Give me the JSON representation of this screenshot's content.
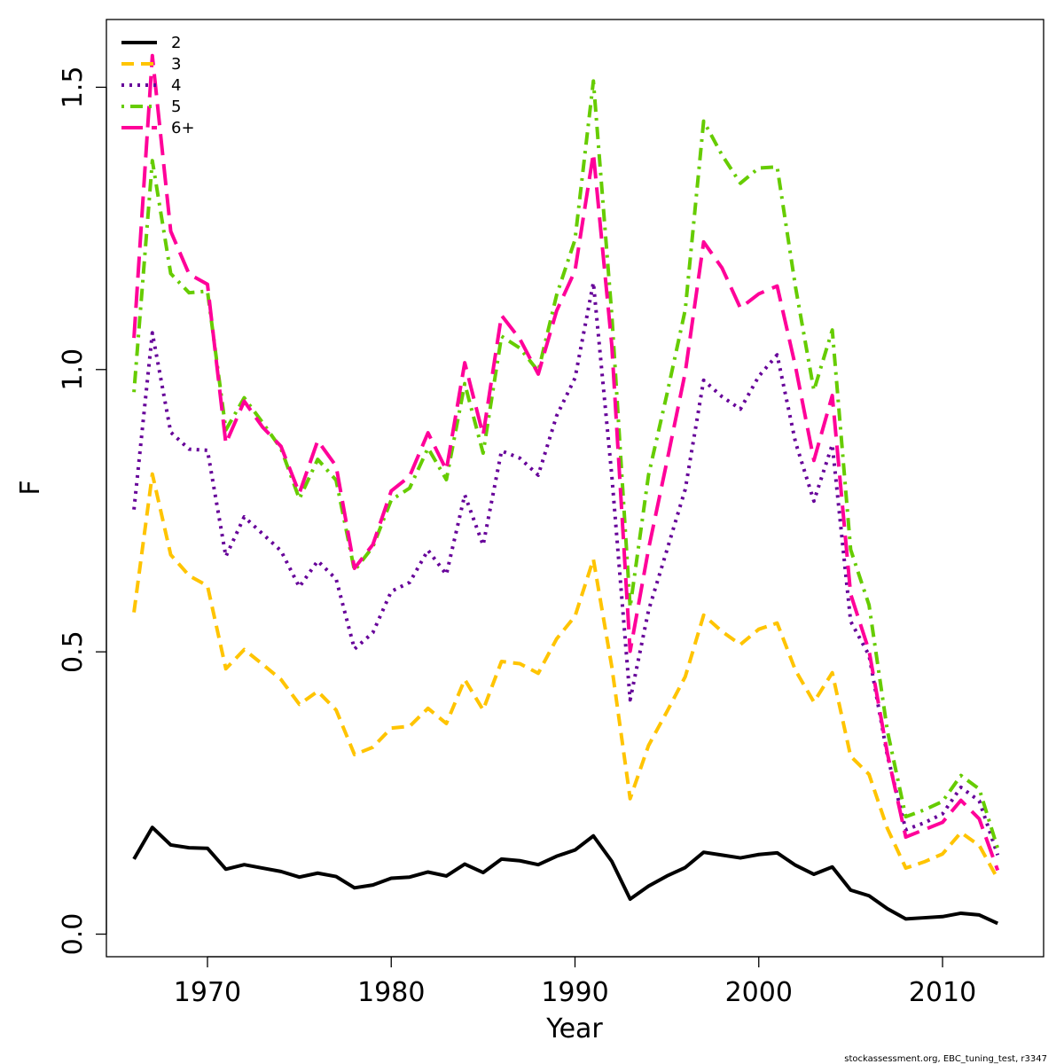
{
  "credit": "stockassessment.org, EBC_tuning_test, r3347",
  "chart_data": {
    "type": "line",
    "xlabel": "Year",
    "ylabel": "F",
    "xlim": [
      1964.5,
      2015.5
    ],
    "ylim": [
      -0.04,
      1.62
    ],
    "x_ticks": [
      1970,
      1980,
      1990,
      2000,
      2010
    ],
    "y_ticks": [
      0.0,
      0.5,
      1.0,
      1.5
    ],
    "y_tick_labels": [
      "0.0",
      "0.5",
      "1.0",
      "1.5"
    ],
    "legend_position": "top-left",
    "x": [
      1966,
      1967,
      1968,
      1969,
      1970,
      1971,
      1972,
      1973,
      1974,
      1975,
      1976,
      1977,
      1978,
      1979,
      1980,
      1981,
      1982,
      1983,
      1984,
      1985,
      1986,
      1987,
      1988,
      1989,
      1990,
      1991,
      1992,
      1993,
      1994,
      1995,
      1996,
      1997,
      1998,
      1999,
      2000,
      2001,
      2002,
      2003,
      2004,
      2005,
      2006,
      2007,
      2008,
      2009,
      2010,
      2011,
      2012,
      2013
    ],
    "series": [
      {
        "name": "2",
        "color": "#000000",
        "dash": "solid",
        "values": [
          0.133,
          0.189,
          0.158,
          0.153,
          0.152,
          0.115,
          0.123,
          0.117,
          0.111,
          0.101,
          0.108,
          0.102,
          0.082,
          0.087,
          0.099,
          0.101,
          0.11,
          0.103,
          0.124,
          0.109,
          0.133,
          0.13,
          0.123,
          0.138,
          0.149,
          0.174,
          0.129,
          0.062,
          0.085,
          0.103,
          0.118,
          0.145,
          0.14,
          0.135,
          0.141,
          0.144,
          0.122,
          0.106,
          0.119,
          0.078,
          0.068,
          0.045,
          0.027,
          0.029,
          0.031,
          0.037,
          0.034,
          0.019
        ]
      },
      {
        "name": "3",
        "color": "#ffc400",
        "dash": "dashed",
        "values": [
          0.57,
          0.815,
          0.672,
          0.635,
          0.617,
          0.47,
          0.504,
          0.478,
          0.451,
          0.407,
          0.43,
          0.397,
          0.318,
          0.331,
          0.365,
          0.368,
          0.4,
          0.373,
          0.451,
          0.397,
          0.483,
          0.479,
          0.462,
          0.523,
          0.563,
          0.664,
          0.474,
          0.24,
          0.334,
          0.394,
          0.456,
          0.565,
          0.536,
          0.513,
          0.54,
          0.551,
          0.467,
          0.411,
          0.463,
          0.315,
          0.283,
          0.187,
          0.117,
          0.128,
          0.142,
          0.18,
          0.157,
          0.098
        ]
      },
      {
        "name": "4",
        "color": "#660099",
        "dash": "dotted",
        "values": [
          0.752,
          1.065,
          0.889,
          0.859,
          0.857,
          0.669,
          0.739,
          0.709,
          0.679,
          0.615,
          0.661,
          0.629,
          0.505,
          0.534,
          0.607,
          0.623,
          0.68,
          0.637,
          0.778,
          0.689,
          0.856,
          0.843,
          0.813,
          0.918,
          0.985,
          1.154,
          0.813,
          0.415,
          0.573,
          0.68,
          0.788,
          0.981,
          0.952,
          0.93,
          0.988,
          1.026,
          0.871,
          0.767,
          0.867,
          0.554,
          0.494,
          0.316,
          0.185,
          0.197,
          0.213,
          0.26,
          0.236,
          0.14
        ]
      },
      {
        "name": "5",
        "color": "#66cc00",
        "dash": "dotdash",
        "values": [
          0.96,
          1.37,
          1.17,
          1.136,
          1.139,
          0.893,
          0.95,
          0.906,
          0.86,
          0.771,
          0.841,
          0.804,
          0.644,
          0.686,
          0.769,
          0.79,
          0.861,
          0.805,
          0.975,
          0.852,
          1.059,
          1.038,
          0.997,
          1.132,
          1.23,
          1.511,
          1.098,
          0.579,
          0.813,
          0.956,
          1.106,
          1.44,
          1.38,
          1.33,
          1.357,
          1.359,
          1.146,
          0.963,
          1.07,
          0.681,
          0.583,
          0.36,
          0.208,
          0.22,
          0.235,
          0.281,
          0.257,
          0.152
        ]
      },
      {
        "name": "6+",
        "color": "#ff0099",
        "dash": "longdash",
        "values": [
          1.056,
          1.556,
          1.245,
          1.169,
          1.151,
          0.869,
          0.944,
          0.898,
          0.864,
          0.781,
          0.874,
          0.829,
          0.648,
          0.69,
          0.785,
          0.811,
          0.888,
          0.822,
          1.012,
          0.884,
          1.096,
          1.054,
          0.992,
          1.104,
          1.175,
          1.383,
          1.044,
          0.501,
          0.682,
          0.837,
          0.995,
          1.226,
          1.18,
          1.109,
          1.134,
          1.148,
          1.005,
          0.839,
          0.954,
          0.602,
          0.502,
          0.32,
          0.172,
          0.185,
          0.198,
          0.237,
          0.204,
          0.113
        ]
      }
    ]
  }
}
